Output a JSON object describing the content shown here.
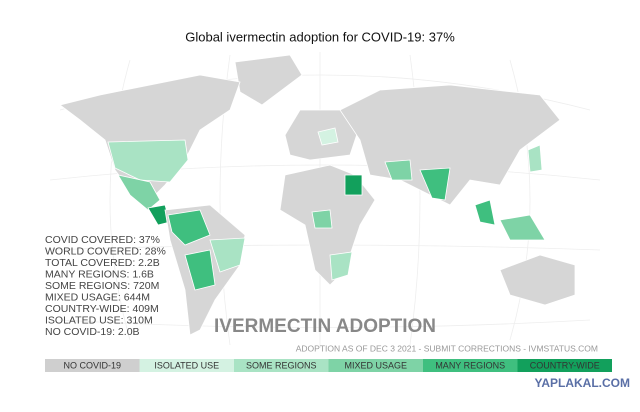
{
  "title": "Global ivermectin adoption for COVID-19: 37%",
  "stats": [
    "COVID COVERED: 37%",
    "WORLD COVERED: 28%",
    "TOTAL COVERED: 2.2B",
    "MANY REGIONS: 1.6B",
    "SOME REGIONS: 720M",
    "MIXED USAGE: 644M",
    "COUNTRY-WIDE: 409M",
    "ISOLATED USE: 310M",
    "NO COVID-19: 2.0B"
  ],
  "heading": "IVERMECTIN ADOPTION",
  "note": "ADOPTION AS OF DEC 3 2021 - SUBMIT CORRECTIONS - IVMSTATUS.COM",
  "legend": [
    {
      "label": "NO COVID-19",
      "color": "#cfcfcf"
    },
    {
      "label": "ISOLATED USE",
      "color": "#d4f2e2"
    },
    {
      "label": "SOME REGIONS",
      "color": "#a9e3c4"
    },
    {
      "label": "MIXED USAGE",
      "color": "#7ed3a6"
    },
    {
      "label": "MANY REGIONS",
      "color": "#3fbf7f"
    },
    {
      "label": "COUNTRY-WIDE",
      "color": "#12a05c"
    }
  ],
  "watermark": "YAPLAKAL.COM"
}
